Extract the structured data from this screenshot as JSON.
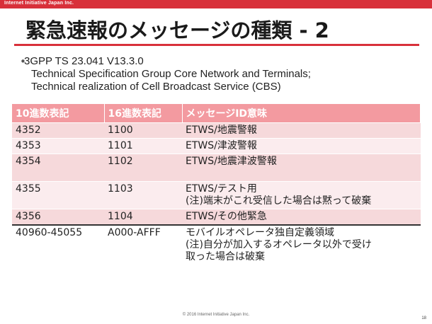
{
  "header": {
    "company": "Internet Initiative Japan Inc."
  },
  "title": "緊急速報のメッセージの種類 - 2",
  "bullet": {
    "line1": "3GPP TS 23.041 V13.3.0",
    "line2": "Technical Specification Group Core Network and Terminals;",
    "line3": "Technical realization of Cell Broadcast Service (CBS)"
  },
  "table": {
    "headers": [
      "10進数表記",
      "16進数表記",
      "メッセージID意味"
    ],
    "rows": [
      {
        "dec": "4352",
        "hex": "1100",
        "meaning": [
          "ETWS/地震警報"
        ]
      },
      {
        "dec": "4353",
        "hex": "1101",
        "meaning": [
          "ETWS/津波警報"
        ]
      },
      {
        "dec": "4354",
        "hex": "1102",
        "meaning": [
          "ETWS/地震津波警報",
          ""
        ]
      },
      {
        "dec": "4355",
        "hex": "1103",
        "meaning": [
          "ETWS/テスト用",
          "(注)端末がこれ受信した場合は黙って破棄"
        ]
      },
      {
        "dec": "4356",
        "hex": "1104",
        "meaning": [
          "ETWS/その他緊急"
        ]
      },
      {
        "dec": "40960-45055",
        "hex": "A000-AFFF",
        "meaning": [
          "モバイルオペレータ独自定義領域",
          "(注)自分が加入するオペレータ以外で受け",
          "取った場合は破棄"
        ]
      }
    ]
  },
  "footer": {
    "copyright": "© 2016 Internet Initiative Japan Inc.",
    "page": "18"
  }
}
